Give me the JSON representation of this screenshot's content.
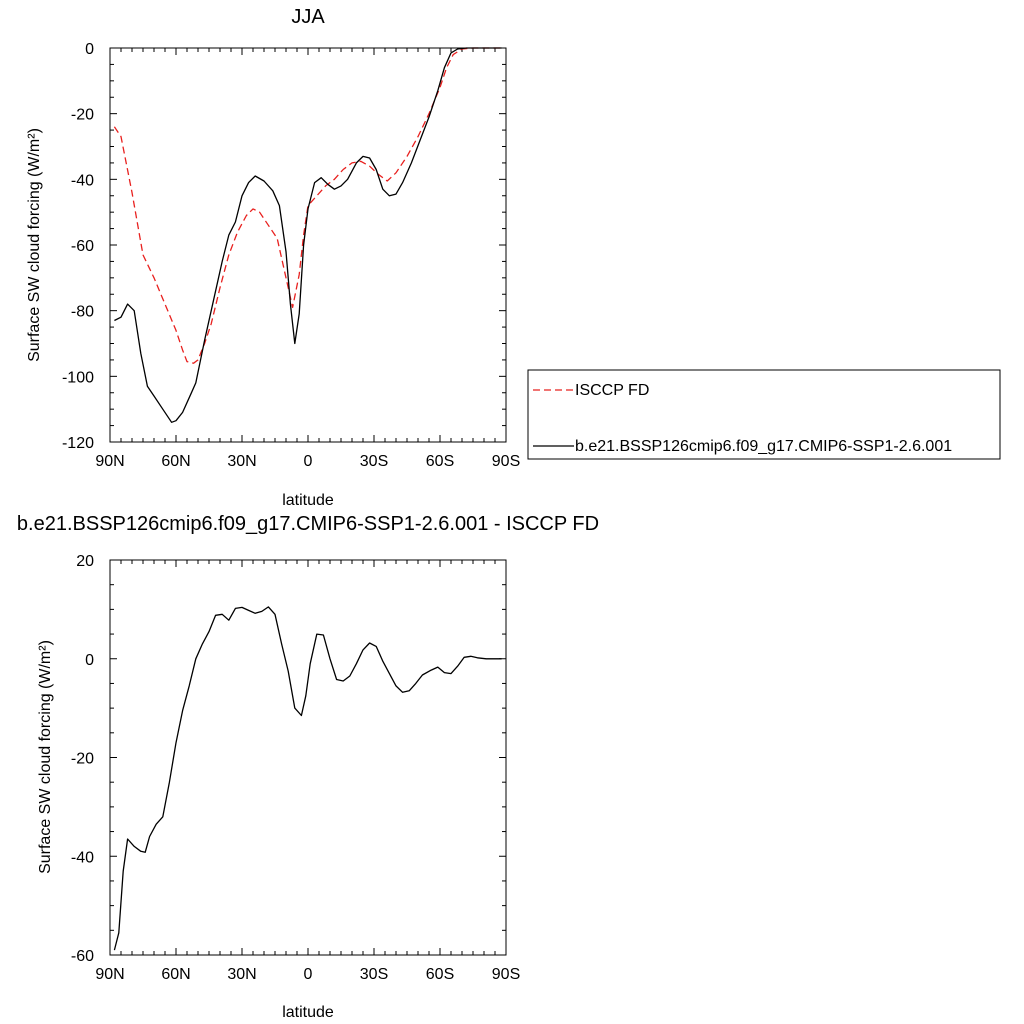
{
  "chart_data": [
    {
      "type": "line",
      "title": "JJA",
      "xlabel": "latitude",
      "ylabel": "Surface SW cloud forcing (W/m²)",
      "xlim": [
        90,
        -90
      ],
      "ylim": [
        -120,
        0
      ],
      "x_ticks": [
        90,
        60,
        30,
        0,
        -30,
        -60,
        -90
      ],
      "x_tick_labels": [
        "90N",
        "60N",
        "30N",
        "0",
        "30S",
        "60S",
        "90S"
      ],
      "y_ticks": [
        0,
        -20,
        -40,
        -60,
        -80,
        -100,
        -120
      ],
      "y_tick_labels": [
        "0",
        "-20",
        "-40",
        "-60",
        "-80",
        "-100",
        "-120"
      ],
      "legend_position": "right-middle",
      "series": [
        {
          "name": "ISCCP FD",
          "color": "#e8201e",
          "style": "dashed",
          "points": [
            [
              88,
              -24
            ],
            [
              85,
              -27
            ],
            [
              80,
              -44
            ],
            [
              75,
              -63
            ],
            [
              70,
              -70
            ],
            [
              65,
              -78
            ],
            [
              60,
              -86
            ],
            [
              57,
              -92
            ],
            [
              55,
              -95.5
            ],
            [
              52,
              -96
            ],
            [
              50,
              -95
            ],
            [
              47,
              -90
            ],
            [
              44,
              -84
            ],
            [
              40,
              -73
            ],
            [
              36,
              -63
            ],
            [
              32,
              -56
            ],
            [
              28,
              -51
            ],
            [
              25,
              -49
            ],
            [
              22,
              -50
            ],
            [
              18,
              -54
            ],
            [
              14,
              -58
            ],
            [
              10,
              -70
            ],
            [
              7,
              -79
            ],
            [
              4,
              -69
            ],
            [
              2,
              -57
            ],
            [
              0,
              -48
            ],
            [
              -4,
              -45
            ],
            [
              -8,
              -42
            ],
            [
              -12,
              -40
            ],
            [
              -16,
              -37
            ],
            [
              -20,
              -35
            ],
            [
              -24,
              -34.5
            ],
            [
              -28,
              -36
            ],
            [
              -32,
              -38.5
            ],
            [
              -36,
              -40.5
            ],
            [
              -40,
              -38
            ],
            [
              -45,
              -33
            ],
            [
              -50,
              -27
            ],
            [
              -55,
              -20
            ],
            [
              -60,
              -12
            ],
            [
              -63,
              -6
            ],
            [
              -66,
              -2
            ],
            [
              -70,
              -0.3
            ],
            [
              -75,
              0
            ],
            [
              -80,
              0
            ],
            [
              -88,
              0
            ]
          ]
        },
        {
          "name": "b.e21.BSSP126cmip6.f09_g17.CMIP6-SSP1-2.6.001",
          "color": "#000000",
          "style": "solid",
          "points": [
            [
              88,
              -83
            ],
            [
              85,
              -82
            ],
            [
              82,
              -78
            ],
            [
              79,
              -80
            ],
            [
              76,
              -93
            ],
            [
              73,
              -103
            ],
            [
              70,
              -106
            ],
            [
              66,
              -110
            ],
            [
              62,
              -114
            ],
            [
              60,
              -113.5
            ],
            [
              57,
              -111
            ],
            [
              53,
              -105
            ],
            [
              51,
              -102
            ],
            [
              47,
              -89
            ],
            [
              43,
              -77
            ],
            [
              39,
              -65
            ],
            [
              36,
              -57
            ],
            [
              33,
              -53
            ],
            [
              30,
              -45
            ],
            [
              27,
              -41
            ],
            [
              24,
              -39
            ],
            [
              20,
              -40.5
            ],
            [
              16,
              -43.5
            ],
            [
              13,
              -48
            ],
            [
              10,
              -62
            ],
            [
              8,
              -78
            ],
            [
              6,
              -90
            ],
            [
              4,
              -81
            ],
            [
              2,
              -60
            ],
            [
              0,
              -49
            ],
            [
              -3,
              -41
            ],
            [
              -6,
              -39.5
            ],
            [
              -9,
              -41.5
            ],
            [
              -12,
              -43
            ],
            [
              -15,
              -42
            ],
            [
              -18,
              -40
            ],
            [
              -22,
              -35
            ],
            [
              -25,
              -33
            ],
            [
              -28,
              -33.5
            ],
            [
              -31,
              -37
            ],
            [
              -34,
              -43
            ],
            [
              -37,
              -45
            ],
            [
              -40,
              -44.5
            ],
            [
              -43,
              -41
            ],
            [
              -47,
              -35
            ],
            [
              -51,
              -28
            ],
            [
              -55,
              -21
            ],
            [
              -59,
              -13
            ],
            [
              -62,
              -6
            ],
            [
              -65,
              -1.5
            ],
            [
              -68,
              -0.3
            ],
            [
              -72,
              0
            ],
            [
              -80,
              0
            ],
            [
              -88,
              0
            ]
          ]
        }
      ]
    },
    {
      "type": "line",
      "title": "b.e21.BSSP126cmip6.f09_g17.CMIP6-SSP1-2.6.001 - ISCCP FD",
      "xlabel": "latitude",
      "ylabel": "Surface SW cloud forcing (W/m²)",
      "xlim": [
        90,
        -90
      ],
      "ylim": [
        -60,
        20
      ],
      "x_ticks": [
        90,
        60,
        30,
        0,
        -30,
        -60,
        -90
      ],
      "x_tick_labels": [
        "90N",
        "60N",
        "30N",
        "0",
        "30S",
        "60S",
        "90S"
      ],
      "y_ticks": [
        20,
        0,
        -20,
        -40,
        -60
      ],
      "y_tick_labels": [
        "20",
        "0",
        "-20",
        "-40",
        "-60"
      ],
      "series": [
        {
          "color": "#000000",
          "style": "solid",
          "points": [
            [
              88,
              -59
            ],
            [
              86,
              -55.5
            ],
            [
              84,
              -43
            ],
            [
              82,
              -36.5
            ],
            [
              79,
              -38
            ],
            [
              76,
              -39
            ],
            [
              74,
              -39.2
            ],
            [
              72,
              -36
            ],
            [
              69,
              -33.5
            ],
            [
              66,
              -32
            ],
            [
              63,
              -25
            ],
            [
              60,
              -17
            ],
            [
              57,
              -10.5
            ],
            [
              54,
              -5.5
            ],
            [
              51,
              0
            ],
            [
              48,
              3
            ],
            [
              45,
              5.5
            ],
            [
              42,
              8.8
            ],
            [
              39,
              9
            ],
            [
              36,
              7.8
            ],
            [
              33,
              10.2
            ],
            [
              30,
              10.4
            ],
            [
              27,
              9.8
            ],
            [
              24,
              9.2
            ],
            [
              21,
              9.6
            ],
            [
              18,
              10.5
            ],
            [
              15,
              9
            ],
            [
              12,
              3
            ],
            [
              9,
              -2.5
            ],
            [
              6,
              -10
            ],
            [
              3,
              -11.5
            ],
            [
              1,
              -7.5
            ],
            [
              -1,
              -1
            ],
            [
              -4,
              5
            ],
            [
              -7,
              4.8
            ],
            [
              -10,
              0
            ],
            [
              -13,
              -4.2
            ],
            [
              -16,
              -4.5
            ],
            [
              -19,
              -3.5
            ],
            [
              -22,
              -1
            ],
            [
              -25,
              1.8
            ],
            [
              -28,
              3.2
            ],
            [
              -31,
              2.5
            ],
            [
              -34,
              -0.5
            ],
            [
              -37,
              -3
            ],
            [
              -40,
              -5.5
            ],
            [
              -43,
              -6.8
            ],
            [
              -46,
              -6.5
            ],
            [
              -49,
              -5
            ],
            [
              -52,
              -3.3
            ],
            [
              -56,
              -2.3
            ],
            [
              -59,
              -1.7
            ],
            [
              -62,
              -2.8
            ],
            [
              -65,
              -3
            ],
            [
              -68,
              -1.5
            ],
            [
              -71,
              0.3
            ],
            [
              -74,
              0.5
            ],
            [
              -77,
              0.2
            ],
            [
              -81,
              0
            ],
            [
              -88,
              0
            ]
          ]
        }
      ]
    }
  ]
}
